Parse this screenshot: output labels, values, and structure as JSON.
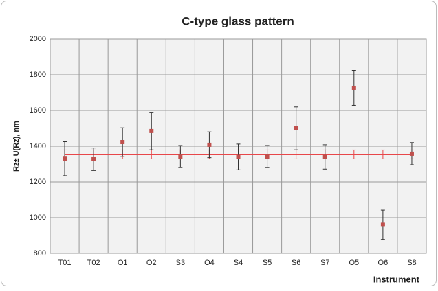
{
  "chart_data": {
    "type": "errorbar",
    "title": "C-type glass pattern",
    "y_label": "Rz± U(Rz), nm",
    "x_label": "Instrument",
    "categories": [
      "T01",
      "T02",
      "O1",
      "O2",
      "S3",
      "O4",
      "S4",
      "S5",
      "S6",
      "S7",
      "O5",
      "O6",
      "S8"
    ],
    "values": [
      1330,
      1327,
      1423,
      1485,
      1342,
      1408,
      1340,
      1342,
      1500,
      1340,
      1727,
      960,
      1358
    ],
    "errors": [
      95,
      63,
      80,
      105,
      62,
      72,
      72,
      62,
      120,
      68,
      98,
      82,
      62
    ],
    "color": "#c0504d",
    "error_color": "#333333",
    "reference": {
      "value": 1354,
      "error": 25,
      "color": "#e8474a"
    },
    "ylim": [
      800,
      2000
    ],
    "yticks": [
      800,
      1000,
      1200,
      1400,
      1600,
      1800,
      2000
    ],
    "grid": true
  }
}
